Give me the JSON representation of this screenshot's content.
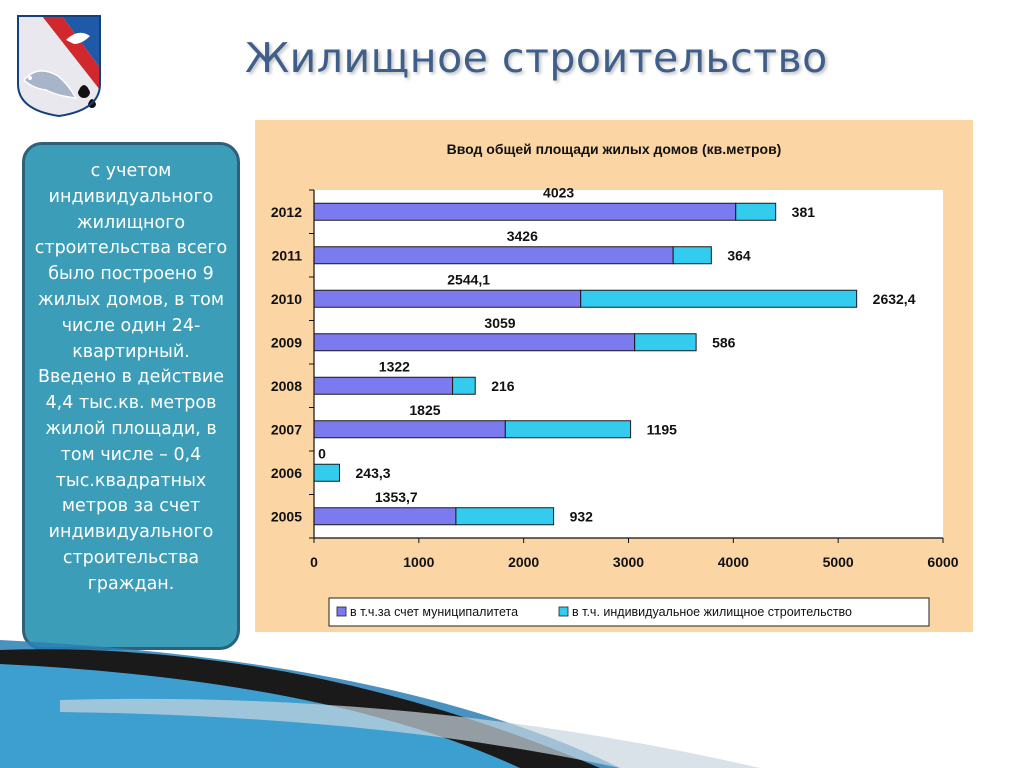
{
  "slide": {
    "title": "Жилищное строительство",
    "crest_icon": "city-coat-of-arms-icon",
    "info_text": "с учетом индивидуального жилищного строительства всего было построено 9 жилых домов, в том числе один 24-квартирный. Введено в действие 4,4 тыс.кв. метров жилой площади, в том числе – 0,4 тыс.квадратных метров за счет индивидуального строительства граждан."
  },
  "chart_data": {
    "type": "bar",
    "orientation": "horizontal",
    "stacked": true,
    "title": "Ввод общей площади жилых домов (кв.метров)",
    "categories": [
      "2012",
      "2011",
      "2010",
      "2009",
      "2008",
      "2007",
      "2006",
      "2005"
    ],
    "series": [
      {
        "name": "в т.ч.за счет муниципалитета",
        "color": "#7b7bef",
        "values": [
          4023,
          3426,
          2544.1,
          3059,
          1322,
          1825,
          0,
          1353.7
        ],
        "labels": [
          "4023",
          "3426",
          "2544,1",
          "3059",
          "1322",
          "1825",
          "0",
          "1353,7"
        ]
      },
      {
        "name": "в т.ч. индивидуальное жилищное строительство",
        "color": "#33ccee",
        "values": [
          381,
          364,
          2632.4,
          586,
          216,
          1195,
          243.3,
          932
        ],
        "labels": [
          "381",
          "364",
          "2632,4",
          "586",
          "216",
          "1195",
          "243,3",
          "932"
        ]
      }
    ],
    "xlim": [
      0,
      6000
    ],
    "xticks": [
      "0",
      "1000",
      "2000",
      "3000",
      "4000",
      "5000",
      "6000"
    ],
    "grid": false,
    "legend": "bottom"
  }
}
